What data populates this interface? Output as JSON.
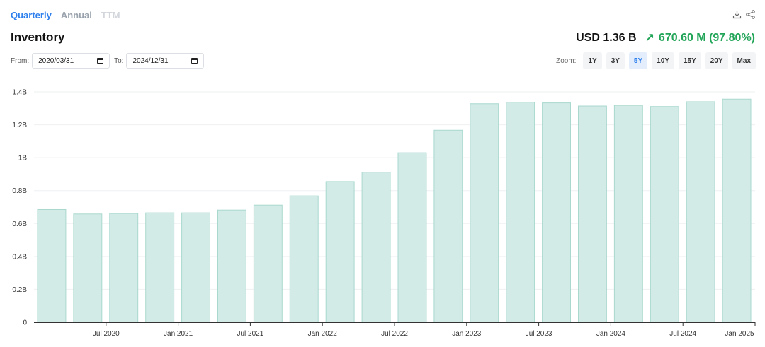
{
  "period_tabs": [
    "Quarterly",
    "Annual",
    "TTM"
  ],
  "metric": {
    "title": "Inventory",
    "current_value": "USD 1.36 B",
    "change_arrow": "↗",
    "change_text": "670.60 M (97.80%)"
  },
  "range": {
    "from_label": "From:",
    "from_value": "2020/03/31",
    "to_label": "To:",
    "to_value": "2024/12/31"
  },
  "zoom": {
    "label": "Zoom:",
    "options": [
      "1Y",
      "3Y",
      "5Y",
      "10Y",
      "15Y",
      "20Y",
      "Max"
    ],
    "active": "5Y"
  },
  "icons": [
    "download-icon",
    "share-icon"
  ],
  "colors": {
    "accent": "#2f80ed",
    "positive": "#22a559",
    "bar_fill": "#d3ebe7",
    "bar_stroke": "#a9d8cf"
  },
  "chart_data": {
    "type": "bar",
    "categories": [
      "2020-03-31",
      "2020-06-30",
      "2020-09-30",
      "2020-12-31",
      "2021-03-31",
      "2021-06-30",
      "2021-09-30",
      "2021-12-31",
      "2022-03-31",
      "2022-06-30",
      "2022-09-30",
      "2022-12-31",
      "2023-03-31",
      "2023-06-30",
      "2023-09-30",
      "2023-12-31",
      "2024-03-31",
      "2024-06-30",
      "2024-09-30",
      "2024-12-31"
    ],
    "values": [
      0.685,
      0.658,
      0.661,
      0.665,
      0.665,
      0.682,
      0.712,
      0.768,
      0.855,
      0.912,
      1.03,
      1.167,
      1.328,
      1.337,
      1.333,
      1.314,
      1.318,
      1.311,
      1.34,
      1.356
    ],
    "unit": "B",
    "ylim": [
      0,
      1.4
    ],
    "yticks": [
      "0",
      "0.2B",
      "0.4B",
      "0.6B",
      "0.8B",
      "1B",
      "1.2B",
      "1.4B"
    ],
    "xticks": [
      {
        "label": "Jul 2020",
        "at_index": 1
      },
      {
        "label": "Jan 2021",
        "at_index": 3
      },
      {
        "label": "Jul 2021",
        "at_index": 5
      },
      {
        "label": "Jan 2022",
        "at_index": 7
      },
      {
        "label": "Jul 2022",
        "at_index": 9
      },
      {
        "label": "Jan 2023",
        "at_index": 11
      },
      {
        "label": "Jul 2023",
        "at_index": 13
      },
      {
        "label": "Jan 2024",
        "at_index": 15
      },
      {
        "label": "Jul 2024",
        "at_index": 17
      },
      {
        "label": "Jan 2025",
        "at_index": 19
      }
    ],
    "grid": true
  }
}
